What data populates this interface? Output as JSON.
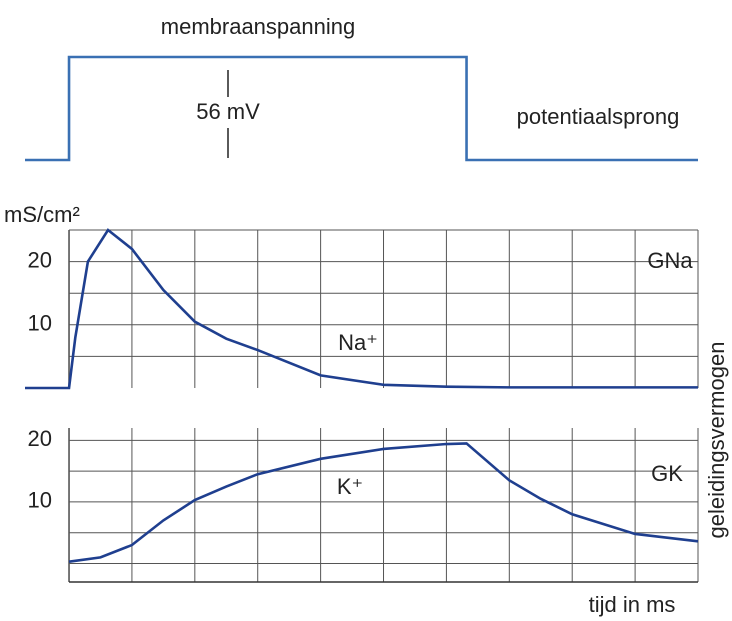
{
  "chart_data": [
    {
      "type": "line",
      "title": "membraanspanning",
      "annotations": [
        "56 mV",
        "potentiaalsprong"
      ],
      "x": [
        -0.7,
        0,
        0,
        6.32,
        6.32,
        10
      ],
      "xlim": [
        -0.7,
        10
      ],
      "series": [
        {
          "color": "#3a70b3",
          "values": [
            0,
            0,
            56,
            56,
            0,
            0
          ]
        }
      ],
      "ylim": [
        0,
        56
      ]
    },
    {
      "type": "line",
      "y_label": "mS/cm²",
      "side_label": "geleidingsvermogen",
      "annotations": [
        "Na⁺"
      ],
      "x": [
        -0.7,
        0,
        0.1,
        0.3,
        0.62,
        1,
        1.5,
        2,
        2.5,
        3,
        4,
        5,
        6,
        7,
        8,
        9,
        10
      ],
      "xlim": [
        -0.7,
        10
      ],
      "xgrid": [
        0,
        1,
        2,
        3,
        4,
        5,
        6,
        7,
        8,
        9,
        10
      ],
      "series": [
        {
          "name": "GNa",
          "color": "#1f3f8f",
          "values": [
            0,
            0,
            8,
            20,
            25,
            22,
            15.5,
            10.5,
            7.8,
            6,
            2,
            0.5,
            0.2,
            0.1,
            0.1,
            0.1,
            0.1
          ]
        }
      ],
      "ylim": [
        0,
        25
      ],
      "yticks": [
        10,
        20
      ],
      "ygrid": [
        5,
        10,
        15,
        20,
        25
      ],
      "grid": true
    },
    {
      "type": "line",
      "x_label": "tijd in ms",
      "annotations": [
        "K⁺"
      ],
      "x": [
        0,
        0.5,
        1,
        1.5,
        2,
        2.5,
        3,
        4,
        5,
        6,
        6.32,
        7,
        7.5,
        8,
        9,
        10
      ],
      "xlim": [
        -0.7,
        10
      ],
      "xgrid": [
        0,
        1,
        2,
        3,
        4,
        5,
        6,
        7,
        8,
        9,
        10
      ],
      "series": [
        {
          "name": "GK",
          "color": "#1f3f8f",
          "values": [
            0.3,
            1,
            3,
            7,
            10.3,
            12.5,
            14.5,
            17,
            18.6,
            19.4,
            19.5,
            13.5,
            10.5,
            8,
            4.8,
            3.6
          ]
        }
      ],
      "ylim": [
        -3,
        22
      ],
      "yticks": [
        10,
        20
      ],
      "ygrid": [
        0,
        5,
        10,
        15,
        20
      ],
      "grid": true
    }
  ]
}
